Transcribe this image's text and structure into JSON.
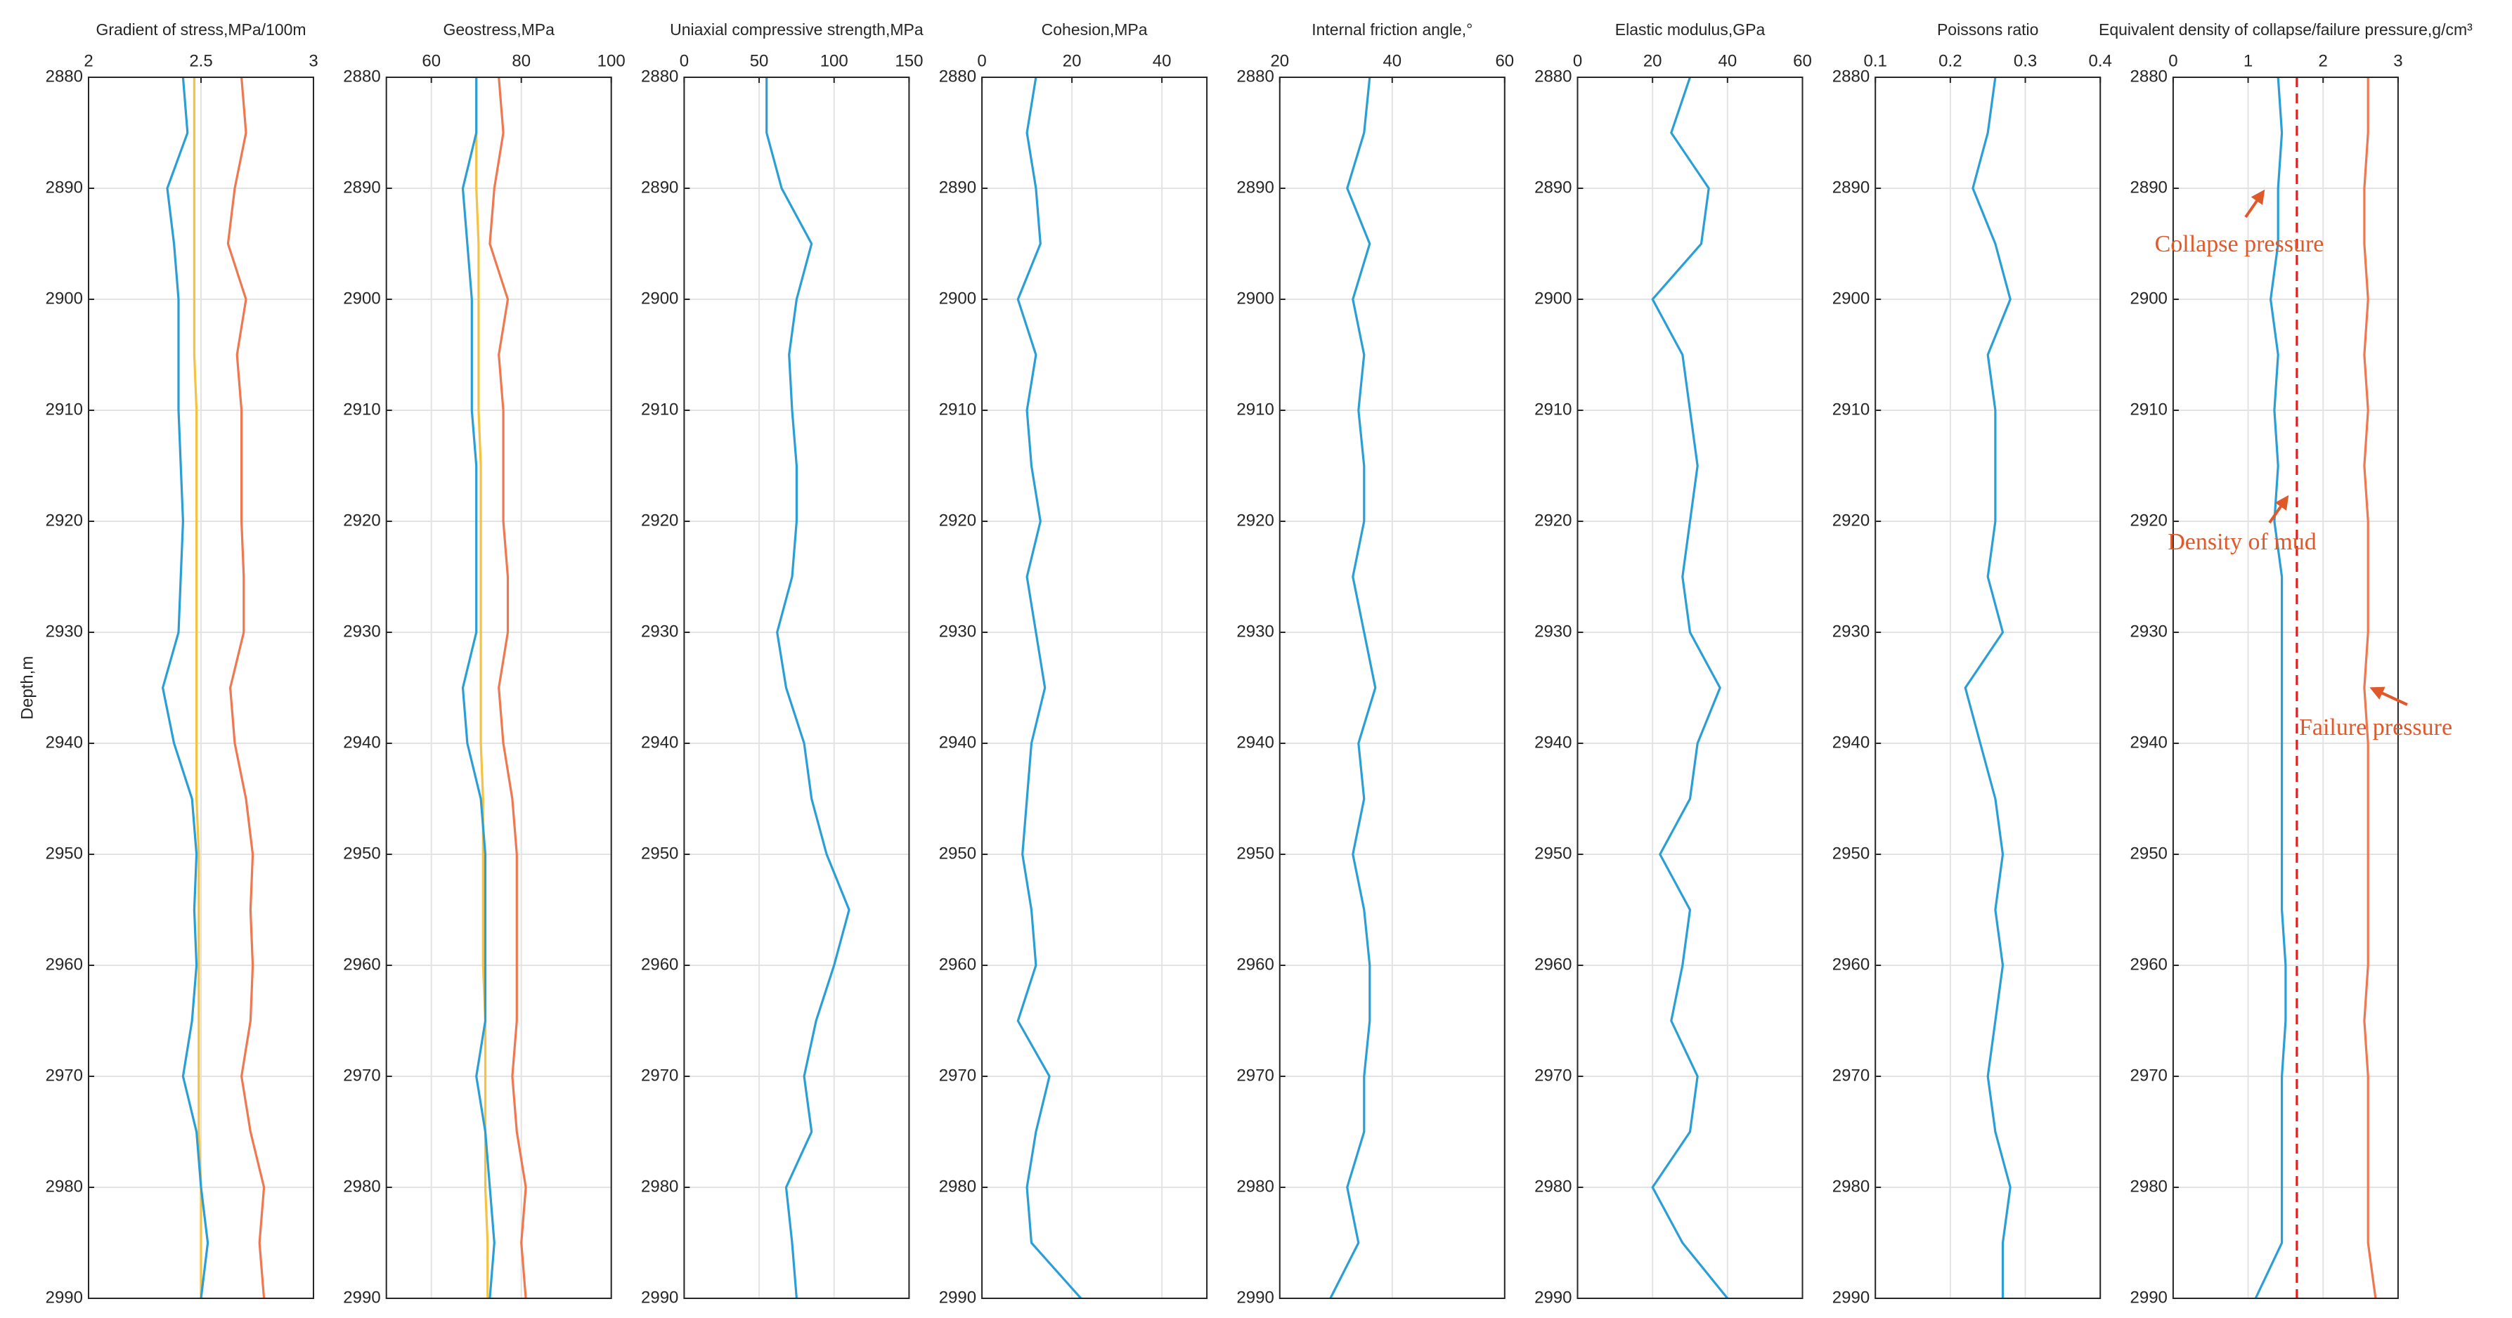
{
  "chart_data": [
    {
      "type": "line",
      "title": "Gradient of stress,MPa/100m",
      "ylabel": "Depth,m",
      "xlim": [
        2,
        3
      ],
      "xticks": [
        2,
        2.5,
        3
      ],
      "ylim": [
        2880,
        2990
      ],
      "yticks": [
        2880,
        2890,
        2900,
        2910,
        2920,
        2930,
        2940,
        2950,
        2960,
        2970,
        2980,
        2990
      ],
      "grid": true,
      "y": [
        2880,
        2885,
        2890,
        2895,
        2900,
        2905,
        2910,
        2915,
        2920,
        2925,
        2930,
        2935,
        2940,
        2945,
        2950,
        2955,
        2960,
        2965,
        2970,
        2975,
        2980,
        2985,
        2990
      ],
      "series": [
        {
          "color": "#2a9fd6",
          "values": [
            2.42,
            2.44,
            2.35,
            2.38,
            2.4,
            2.4,
            2.4,
            2.41,
            2.42,
            2.41,
            2.4,
            2.33,
            2.38,
            2.46,
            2.48,
            2.47,
            2.48,
            2.46,
            2.42,
            2.48,
            2.5,
            2.53,
            2.5
          ]
        },
        {
          "color": "#f07850",
          "values": [
            2.68,
            2.7,
            2.65,
            2.62,
            2.7,
            2.66,
            2.68,
            2.68,
            2.68,
            2.69,
            2.69,
            2.63,
            2.65,
            2.7,
            2.73,
            2.72,
            2.73,
            2.72,
            2.68,
            2.72,
            2.78,
            2.76,
            2.78
          ]
        },
        {
          "color": "#f5c242",
          "values": [
            2.47,
            2.47,
            2.47,
            2.47,
            2.47,
            2.47,
            2.48,
            2.48,
            2.48,
            2.48,
            2.48,
            2.48,
            2.48,
            2.48,
            2.49,
            2.49,
            2.49,
            2.49,
            2.49,
            2.49,
            2.5,
            2.5,
            2.5
          ]
        }
      ]
    },
    {
      "type": "line",
      "title": "Geostress,MPa",
      "xlim": [
        50,
        100
      ],
      "xticks": [
        60,
        80,
        100
      ],
      "ylim": [
        2880,
        2990
      ],
      "yticks": [
        2880,
        2890,
        2900,
        2910,
        2920,
        2930,
        2940,
        2950,
        2960,
        2970,
        2980,
        2990
      ],
      "grid": true,
      "y": [
        2880,
        2885,
        2890,
        2895,
        2900,
        2905,
        2910,
        2915,
        2920,
        2925,
        2930,
        2935,
        2940,
        2945,
        2950,
        2955,
        2960,
        2965,
        2970,
        2975,
        2980,
        2985,
        2990
      ],
      "series": [
        {
          "color": "#2a9fd6",
          "values": [
            70,
            70,
            67,
            68,
            69,
            69,
            69,
            70,
            70,
            70,
            70,
            67,
            68,
            71,
            72,
            72,
            72,
            72,
            70,
            72,
            73,
            74,
            73
          ]
        },
        {
          "color": "#f07850",
          "values": [
            75,
            76,
            74,
            73,
            77,
            75,
            76,
            76,
            76,
            77,
            77,
            75,
            76,
            78,
            79,
            79,
            79,
            79,
            78,
            79,
            81,
            80,
            81
          ]
        },
        {
          "color": "#f5c242",
          "values": [
            70,
            70,
            70,
            70.5,
            70.5,
            70.5,
            70.5,
            71,
            71,
            71,
            71,
            71,
            71,
            71.5,
            71.5,
            71.5,
            71.5,
            72,
            72,
            72,
            72,
            72.5,
            72.5
          ]
        }
      ]
    },
    {
      "type": "line",
      "title": "Uniaxial compressive strength,MPa",
      "xlim": [
        0,
        150
      ],
      "xticks": [
        0,
        50,
        100,
        150
      ],
      "ylim": [
        2880,
        2990
      ],
      "yticks": [
        2880,
        2890,
        2900,
        2910,
        2920,
        2930,
        2940,
        2950,
        2960,
        2970,
        2980,
        2990
      ],
      "grid": true,
      "y": [
        2880,
        2885,
        2890,
        2895,
        2900,
        2905,
        2910,
        2915,
        2920,
        2925,
        2930,
        2935,
        2940,
        2945,
        2950,
        2955,
        2960,
        2965,
        2970,
        2975,
        2980,
        2985,
        2990
      ],
      "series": [
        {
          "color": "#2a9fd6",
          "values": [
            55,
            55,
            65,
            85,
            75,
            70,
            72,
            75,
            75,
            72,
            62,
            68,
            80,
            85,
            95,
            110,
            100,
            88,
            80,
            85,
            68,
            72,
            75
          ]
        }
      ]
    },
    {
      "type": "line",
      "title": "Cohesion,MPa",
      "xlim": [
        0,
        50
      ],
      "xticks": [
        0,
        20,
        40
      ],
      "ylim": [
        2880,
        2990
      ],
      "yticks": [
        2880,
        2890,
        2900,
        2910,
        2920,
        2930,
        2940,
        2950,
        2960,
        2970,
        2980,
        2990
      ],
      "grid": true,
      "y": [
        2880,
        2885,
        2890,
        2895,
        2900,
        2905,
        2910,
        2915,
        2920,
        2925,
        2930,
        2935,
        2940,
        2945,
        2950,
        2955,
        2960,
        2965,
        2970,
        2975,
        2980,
        2985,
        2990
      ],
      "series": [
        {
          "color": "#2a9fd6",
          "values": [
            12,
            10,
            12,
            13,
            8,
            12,
            10,
            11,
            13,
            10,
            12,
            14,
            11,
            10,
            9,
            11,
            12,
            8,
            15,
            12,
            10,
            11,
            22
          ]
        }
      ]
    },
    {
      "type": "line",
      "title": "Internal friction angle,°",
      "xlim": [
        20,
        60
      ],
      "xticks": [
        20,
        40,
        60
      ],
      "ylim": [
        2880,
        2990
      ],
      "yticks": [
        2880,
        2890,
        2900,
        2910,
        2920,
        2930,
        2940,
        2950,
        2960,
        2970,
        2980,
        2990
      ],
      "grid": true,
      "y": [
        2880,
        2885,
        2890,
        2895,
        2900,
        2905,
        2910,
        2915,
        2920,
        2925,
        2930,
        2935,
        2940,
        2945,
        2950,
        2955,
        2960,
        2965,
        2970,
        2975,
        2980,
        2985,
        2990
      ],
      "series": [
        {
          "color": "#2a9fd6",
          "values": [
            36,
            35,
            32,
            36,
            33,
            35,
            34,
            35,
            35,
            33,
            35,
            37,
            34,
            35,
            33,
            35,
            36,
            36,
            35,
            35,
            32,
            34,
            29
          ]
        }
      ]
    },
    {
      "type": "line",
      "title": "Elastic modulus,GPa",
      "xlim": [
        0,
        60
      ],
      "xticks": [
        0,
        20,
        40,
        60
      ],
      "ylim": [
        2880,
        2990
      ],
      "yticks": [
        2880,
        2890,
        2900,
        2910,
        2920,
        2930,
        2940,
        2950,
        2960,
        2970,
        2980,
        2990
      ],
      "grid": true,
      "y": [
        2880,
        2885,
        2890,
        2895,
        2900,
        2905,
        2910,
        2915,
        2920,
        2925,
        2930,
        2935,
        2940,
        2945,
        2950,
        2955,
        2960,
        2965,
        2970,
        2975,
        2980,
        2985,
        2990
      ],
      "series": [
        {
          "color": "#2a9fd6",
          "values": [
            30,
            25,
            35,
            33,
            20,
            28,
            30,
            32,
            30,
            28,
            30,
            38,
            32,
            30,
            22,
            30,
            28,
            25,
            32,
            30,
            20,
            28,
            40
          ]
        }
      ]
    },
    {
      "type": "line",
      "title": "Poissons ratio",
      "xlim": [
        0.1,
        0.4
      ],
      "xticks": [
        0.1,
        0.2,
        0.3,
        0.4
      ],
      "ylim": [
        2880,
        2990
      ],
      "yticks": [
        2880,
        2890,
        2900,
        2910,
        2920,
        2930,
        2940,
        2950,
        2960,
        2970,
        2980,
        2990
      ],
      "grid": true,
      "y": [
        2880,
        2885,
        2890,
        2895,
        2900,
        2905,
        2910,
        2915,
        2920,
        2925,
        2930,
        2935,
        2940,
        2945,
        2950,
        2955,
        2960,
        2965,
        2970,
        2975,
        2980,
        2985,
        2990
      ],
      "series": [
        {
          "color": "#2a9fd6",
          "values": [
            0.26,
            0.25,
            0.23,
            0.26,
            0.28,
            0.25,
            0.26,
            0.26,
            0.26,
            0.25,
            0.27,
            0.22,
            0.24,
            0.26,
            0.27,
            0.26,
            0.27,
            0.26,
            0.25,
            0.26,
            0.28,
            0.27,
            0.27
          ]
        }
      ]
    },
    {
      "type": "line",
      "title": "Equivalent density of collapse/failure pressure,g/cm³",
      "xlim": [
        0,
        3
      ],
      "xticks": [
        0,
        1,
        2,
        3
      ],
      "ylim": [
        2880,
        2990
      ],
      "yticks": [
        2880,
        2890,
        2900,
        2910,
        2920,
        2930,
        2940,
        2950,
        2960,
        2970,
        2980,
        2990
      ],
      "grid": true,
      "y": [
        2880,
        2885,
        2890,
        2895,
        2900,
        2905,
        2910,
        2915,
        2920,
        2925,
        2930,
        2935,
        2940,
        2945,
        2950,
        2955,
        2960,
        2965,
        2970,
        2975,
        2980,
        2985,
        2990
      ],
      "annotations": [
        "Collapse pressure",
        "Density of mud",
        "Failure pressure"
      ],
      "series": [
        {
          "color": "#2a9fd6",
          "values": [
            1.4,
            1.45,
            1.4,
            1.4,
            1.3,
            1.4,
            1.35,
            1.4,
            1.35,
            1.45,
            1.45,
            1.45,
            1.45,
            1.45,
            1.45,
            1.45,
            1.5,
            1.5,
            1.45,
            1.45,
            1.45,
            1.45,
            1.1
          ]
        },
        {
          "color": "#e02020",
          "dashed": true,
          "values": [
            1.65,
            1.65,
            1.65,
            1.65,
            1.65,
            1.65,
            1.65,
            1.65,
            1.65,
            1.65,
            1.65,
            1.65,
            1.65,
            1.65,
            1.65,
            1.65,
            1.65,
            1.65,
            1.65,
            1.65,
            1.65,
            1.65,
            1.65
          ]
        },
        {
          "color": "#f07850",
          "values": [
            2.6,
            2.6,
            2.55,
            2.55,
            2.6,
            2.55,
            2.6,
            2.55,
            2.6,
            2.6,
            2.6,
            2.55,
            2.6,
            2.6,
            2.6,
            2.6,
            2.6,
            2.55,
            2.6,
            2.6,
            2.6,
            2.6,
            2.7
          ]
        }
      ]
    }
  ]
}
